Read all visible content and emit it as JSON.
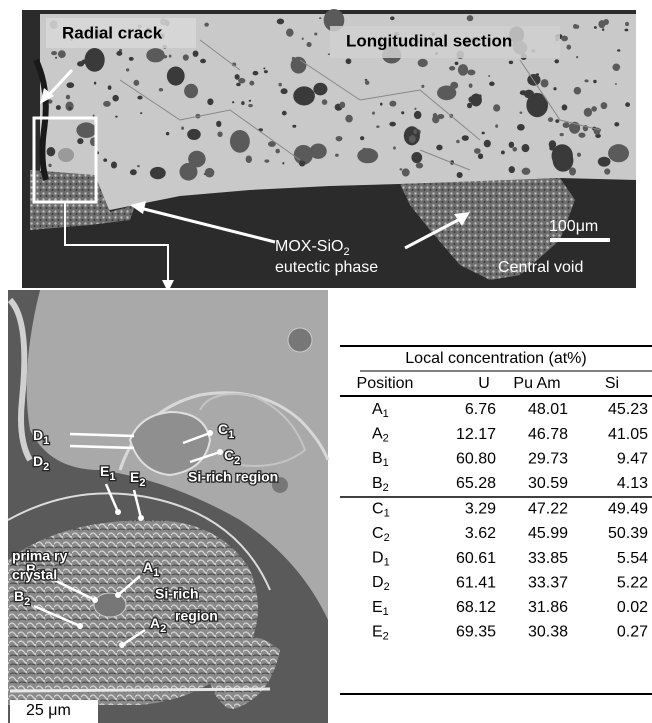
{
  "top_image": {
    "radial_crack": "Radial crack",
    "section": "Longitudinal section",
    "scale": "100μm",
    "phase_1": "MOX-SiO",
    "phase_1_sub": "2",
    "phase_2": "eutectic phase",
    "void": "Central void"
  },
  "bottom_image": {
    "scale": "25 μm",
    "points": [
      [
        "D",
        "1"
      ],
      [
        "D",
        "2"
      ],
      [
        "C",
        "1"
      ],
      [
        "C",
        "2"
      ],
      [
        "E",
        "1"
      ],
      [
        "E",
        "2"
      ],
      [
        "B",
        "1"
      ],
      [
        "B",
        "2"
      ],
      [
        "A",
        "1"
      ],
      [
        "A",
        "2"
      ]
    ],
    "regions": [
      "Si-rich  region",
      "prima ry",
      "crystal",
      "Si-rich",
      "region"
    ]
  },
  "table": {
    "title": "Local concentration (at%)",
    "header": [
      "Position",
      "U",
      "Pu Am",
      "Si"
    ],
    "rows": [
      [
        "A",
        "1",
        "6.76",
        "48.01",
        "45.23"
      ],
      [
        "A",
        "2",
        "12.17",
        "46.78",
        "41.05"
      ],
      [
        "B",
        "1",
        "60.80",
        "29.73",
        "9.47"
      ],
      [
        "B",
        "2",
        "65.28",
        "30.59",
        "4.13"
      ],
      [
        "C",
        "1",
        "3.29",
        "47.22",
        "49.49"
      ],
      [
        "C",
        "2",
        "3.62",
        "45.99",
        "50.39"
      ],
      [
        "D",
        "1",
        "60.61",
        "33.85",
        "5.54"
      ],
      [
        "D",
        "2",
        "61.41",
        "33.37",
        "5.22"
      ],
      [
        "E",
        "1",
        "68.12",
        "31.86",
        "0.02"
      ],
      [
        "E",
        "2",
        "69.35",
        "30.38",
        "0.27"
      ]
    ]
  }
}
